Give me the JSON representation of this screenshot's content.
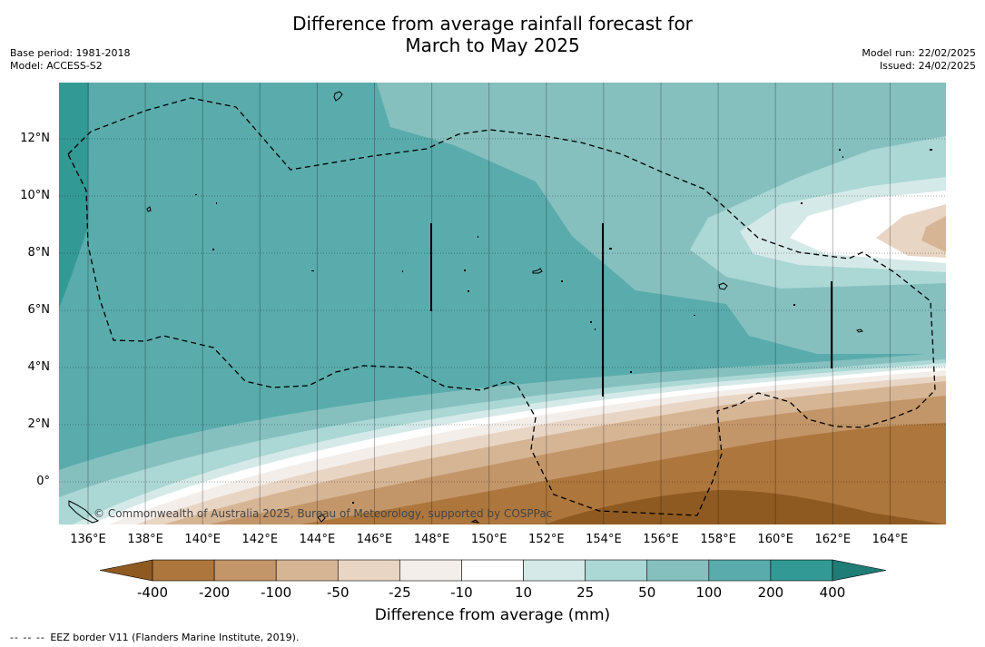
{
  "header": {
    "title_line1": "Difference from average rainfall forecast for",
    "title_line2": "March to May 2025",
    "base_period": "Base period: 1981-2018",
    "model": "Model: ACCESS-S2",
    "model_run": "Model run: 22/02/2025",
    "issued": "Issued: 24/02/2025"
  },
  "map": {
    "lat_labels": [
      "12°N",
      "10°N",
      "8°N",
      "6°N",
      "4°N",
      "2°N",
      "0°"
    ],
    "lon_labels": [
      "136°E",
      "138°E",
      "140°E",
      "142°E",
      "144°E",
      "146°E",
      "148°E",
      "150°E",
      "152°E",
      "154°E",
      "156°E",
      "158°E",
      "160°E",
      "162°E",
      "164°E"
    ],
    "credit": "© Commonwealth of Australia 2025, Bureau of Meteorology, supported by COSPPac"
  },
  "colorbar": {
    "labels": [
      "-400",
      "-200",
      "-100",
      "-50",
      "-25",
      "-10",
      "10",
      "25",
      "50",
      "100",
      "200",
      "400"
    ],
    "colors": [
      "#8f5a22",
      "#ad763c",
      "#c39669",
      "#d6b595",
      "#e9d5c4",
      "#f4eeea",
      "#ffffff",
      "#d5eae8",
      "#abd7d5",
      "#85c0bf",
      "#5aacac",
      "#339995",
      "#1f7c76"
    ],
    "title": "Difference from average (mm)"
  },
  "footer": {
    "legend_marker": "--  --  --",
    "legend_text": "EEZ border V11 (Flanders Marine Institute, 2019)."
  }
}
